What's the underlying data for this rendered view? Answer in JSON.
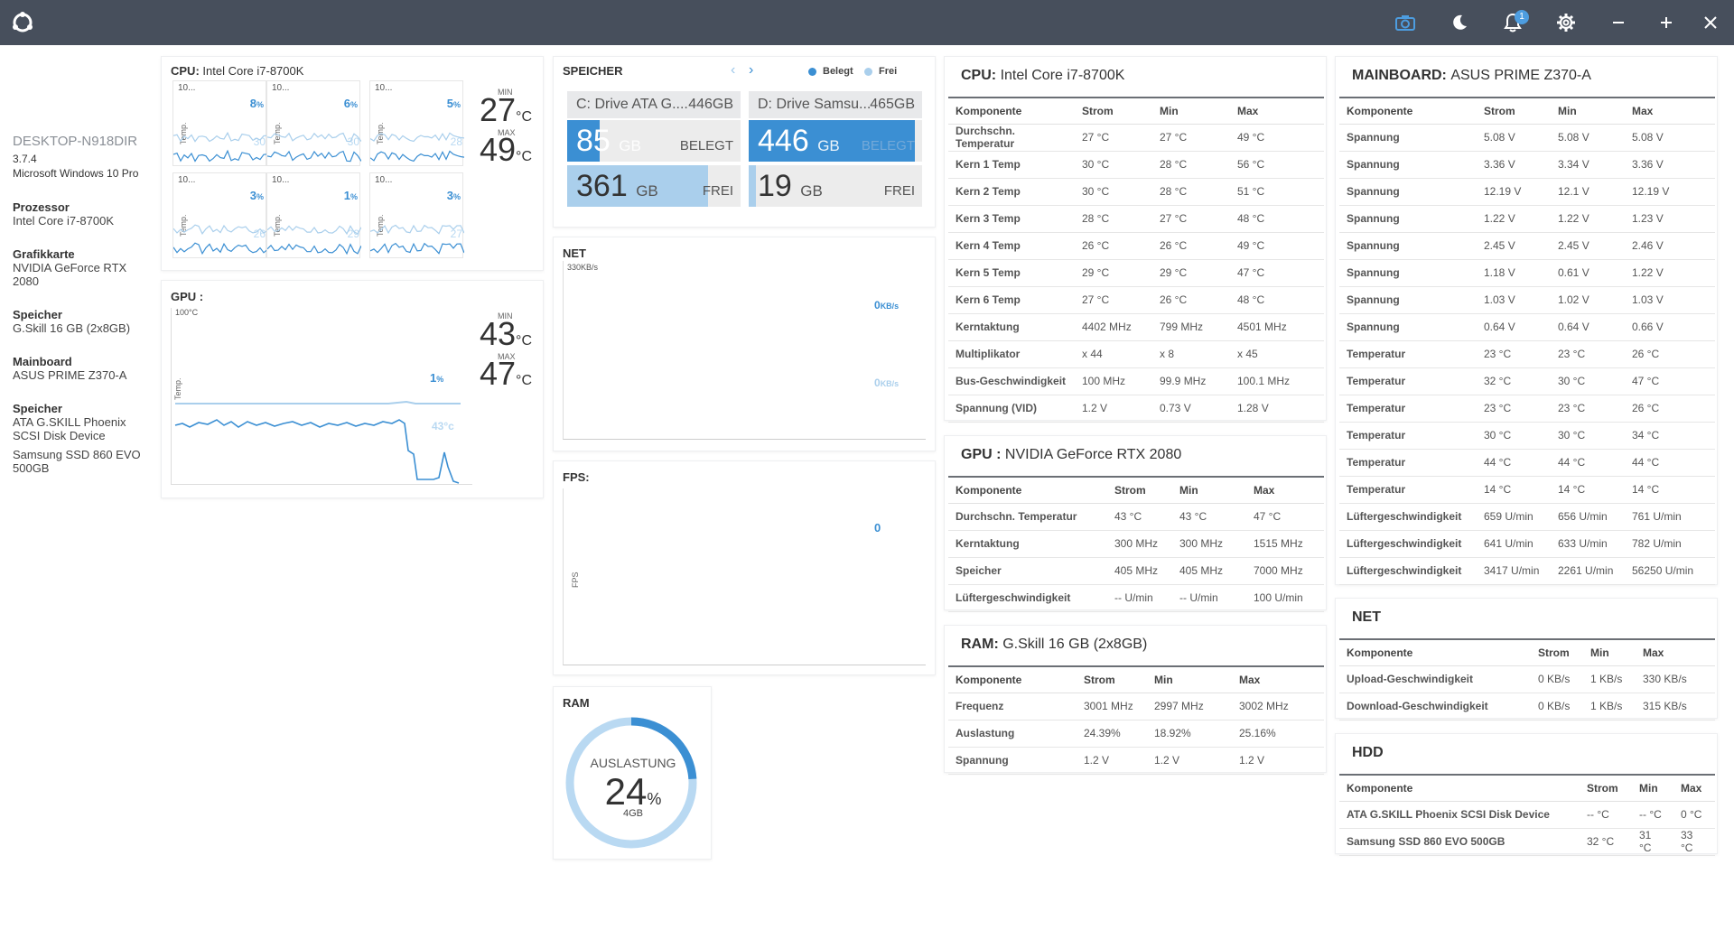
{
  "topbar": {
    "notification_count": "1",
    "icons": [
      "logo-icon",
      "camera-icon",
      "moon-icon",
      "bell-icon",
      "gear-icon",
      "minimize-icon",
      "plus-icon",
      "close-icon"
    ],
    "bg_color": "#474f5c",
    "accent": "#3b8fd3"
  },
  "sidebar": {
    "hostname": "DESKTOP-N918DIR",
    "version": "3.7.4",
    "os": "Microsoft Windows 10 Pro",
    "items": [
      {
        "label": "Prozessor",
        "values": [
          "Intel Core i7-8700K"
        ]
      },
      {
        "label": "Grafikkarte",
        "values": [
          "NVIDIA GeForce RTX 2080"
        ]
      },
      {
        "label": "Speicher",
        "values": [
          "G.Skill 16 GB (2x8GB)"
        ]
      },
      {
        "label": "Mainboard",
        "values": [
          "ASUS PRIME Z370-A"
        ]
      },
      {
        "label": "Speicher",
        "values": [
          "ATA G.SKILL Phoenix SCSI Disk Device",
          "Samsung SSD 860 EVO 500GB"
        ]
      }
    ]
  },
  "cpu_card": {
    "title_prefix": "CPU:",
    "title": "Intel Core i7-8700K",
    "cores": [
      {
        "label": "10...",
        "pct": "8",
        "ghost": "30",
        "axis": "Temp."
      },
      {
        "label": "10...",
        "pct": "6",
        "ghost": "30",
        "axis": "Temp."
      },
      {
        "label": "10...",
        "pct": "5",
        "ghost": "28",
        "axis": "Temp."
      },
      {
        "label": "10...",
        "pct": "3",
        "ghost": "26",
        "axis": "Temp."
      },
      {
        "label": "10...",
        "pct": "1",
        "ghost": "29",
        "axis": "Temp."
      },
      {
        "label": "10...",
        "pct": "3",
        "ghost": "27",
        "axis": "Temp."
      }
    ],
    "pct_unit": "%",
    "min_label": "MIN",
    "max_label": "MAX",
    "min_value": "27",
    "max_value": "49",
    "temp_unit": "°C"
  },
  "gpu_card": {
    "title": "GPU :",
    "scale_label": "100°C",
    "axis_label": "Temp.",
    "load_pct": "1",
    "pct_unit": "%",
    "ghost_temp": "43°c",
    "min_label": "MIN",
    "max_label": "MAX",
    "min_value": "43",
    "max_value": "47",
    "temp_unit": "°C"
  },
  "storage_card": {
    "title": "SPEICHER",
    "legend_used": "Belegt",
    "legend_free": "Frei",
    "drives": [
      {
        "name": "C: Drive ATA G....",
        "size": "446GB",
        "used": "85",
        "used_unit": "GB",
        "used_label": "BELEGT",
        "free": "361",
        "free_unit": "GB",
        "free_label": "FREI",
        "used_fraction": 0.19
      },
      {
        "name": "D: Drive Samsu...",
        "size": "465GB",
        "used": "446",
        "used_unit": "GB",
        "used_label": "BELEGT",
        "free": "19",
        "free_unit": "GB",
        "free_label": "FREI",
        "used_fraction": 0.96
      }
    ]
  },
  "net_card": {
    "title": "NET",
    "scale_label": "330KB/s",
    "upload": "0",
    "download": "0",
    "rate_unit": "KB/s"
  },
  "fps_card": {
    "title": "FPS:",
    "axis_label": "FPS",
    "value": "0"
  },
  "ram_card": {
    "title": "RAM",
    "label": "AUSLASTUNG",
    "value": "24",
    "unit": "%",
    "sub": "4GB",
    "load_fraction": 0.24
  },
  "cpu_table": {
    "title_prefix": "CPU:",
    "title": "Intel Core i7-8700K",
    "headers": [
      "Komponente",
      "Strom",
      "Min",
      "Max"
    ],
    "rows": [
      [
        "Durchschn. Temperatur",
        "27 °C",
        "27 °C",
        "49 °C"
      ],
      [
        "Kern 1 Temp",
        "30 °C",
        "28 °C",
        "56 °C"
      ],
      [
        "Kern 2 Temp",
        "30 °C",
        "28 °C",
        "51 °C"
      ],
      [
        "Kern 3 Temp",
        "28 °C",
        "27 °C",
        "48 °C"
      ],
      [
        "Kern 4 Temp",
        "26 °C",
        "26 °C",
        "49 °C"
      ],
      [
        "Kern 5 Temp",
        "29 °C",
        "29 °C",
        "47 °C"
      ],
      [
        "Kern 6 Temp",
        "27 °C",
        "26 °C",
        "48 °C"
      ],
      [
        "Kerntaktung",
        "4402 MHz",
        "799 MHz",
        "4501 MHz"
      ],
      [
        "Multiplikator",
        "x 44",
        "x 8",
        "x 45"
      ],
      [
        "Bus-Geschwindigkeit",
        "100 MHz",
        "99.9 MHz",
        "100.1 MHz"
      ],
      [
        "Spannung (VID)",
        "1.2 V",
        "0.73 V",
        "1.28 V"
      ]
    ]
  },
  "gpu_table": {
    "title_prefix": "GPU :",
    "title": "NVIDIA GeForce RTX 2080",
    "headers": [
      "Komponente",
      "Strom",
      "Min",
      "Max"
    ],
    "rows": [
      [
        "Durchschn. Temperatur",
        "43 °C",
        "43 °C",
        "47 °C"
      ],
      [
        "Kerntaktung",
        "300 MHz",
        "300 MHz",
        "1515 MHz"
      ],
      [
        "Speicher",
        "405 MHz",
        "405 MHz",
        "7000 MHz"
      ],
      [
        "Lüftergeschwindigkeit",
        "-- U/min",
        "-- U/min",
        "100 U/min"
      ]
    ]
  },
  "ram_table": {
    "title_prefix": "RAM:",
    "title": "G.Skill 16 GB (2x8GB)",
    "headers": [
      "Komponente",
      "Strom",
      "Min",
      "Max"
    ],
    "rows": [
      [
        "Frequenz",
        "3001 MHz",
        "2997 MHz",
        "3002 MHz"
      ],
      [
        "Auslastung",
        "24.39%",
        "18.92%",
        "25.16%"
      ],
      [
        "Spannung",
        "1.2 V",
        "1.2 V",
        "1.2 V"
      ]
    ]
  },
  "mainboard_table": {
    "title_prefix": "MAINBOARD:",
    "title": "ASUS PRIME Z370-A",
    "headers": [
      "Komponente",
      "Strom",
      "Min",
      "Max"
    ],
    "rows": [
      [
        "Spannung",
        "5.08 V",
        "5.08 V",
        "5.08 V"
      ],
      [
        "Spannung",
        "3.36 V",
        "3.34 V",
        "3.36 V"
      ],
      [
        "Spannung",
        "12.19 V",
        "12.1 V",
        "12.19 V"
      ],
      [
        "Spannung",
        "1.22 V",
        "1.22 V",
        "1.23 V"
      ],
      [
        "Spannung",
        "2.45 V",
        "2.45 V",
        "2.46 V"
      ],
      [
        "Spannung",
        "1.18 V",
        "0.61 V",
        "1.22 V"
      ],
      [
        "Spannung",
        "1.03 V",
        "1.02 V",
        "1.03 V"
      ],
      [
        "Spannung",
        "0.64 V",
        "0.64 V",
        "0.66 V"
      ],
      [
        "Temperatur",
        "23 °C",
        "23 °C",
        "26 °C"
      ],
      [
        "Temperatur",
        "32 °C",
        "30 °C",
        "47 °C"
      ],
      [
        "Temperatur",
        "23 °C",
        "23 °C",
        "26 °C"
      ],
      [
        "Temperatur",
        "30 °C",
        "30 °C",
        "34 °C"
      ],
      [
        "Temperatur",
        "44 °C",
        "44 °C",
        "44 °C"
      ],
      [
        "Temperatur",
        "14 °C",
        "14 °C",
        "14 °C"
      ],
      [
        "Lüftergeschwindigkeit",
        "659 U/min",
        "656 U/min",
        "761 U/min"
      ],
      [
        "Lüftergeschwindigkeit",
        "641 U/min",
        "633 U/min",
        "782 U/min"
      ],
      [
        "Lüftergeschwindigkeit",
        "3417 U/min",
        "2261 U/min",
        "56250 U/min"
      ]
    ]
  },
  "net_table": {
    "title": "NET",
    "headers": [
      "Komponente",
      "Strom",
      "Min",
      "Max"
    ],
    "rows": [
      [
        "Upload-Geschwindigkeit",
        "0 KB/s",
        "1 KB/s",
        "330 KB/s"
      ],
      [
        "Download-Geschwindigkeit",
        "0 KB/s",
        "1 KB/s",
        "315 KB/s"
      ]
    ]
  },
  "hdd_table": {
    "title": "HDD",
    "headers": [
      "Komponente",
      "Strom",
      "Min",
      "Max"
    ],
    "rows": [
      [
        "ATA G.SKILL Phoenix SCSI Disk Device",
        "-- °C",
        "-- °C",
        "0 °C"
      ],
      [
        "Samsung SSD 860 EVO 500GB",
        "32 °C",
        "31 °C",
        "33 °C"
      ]
    ]
  }
}
